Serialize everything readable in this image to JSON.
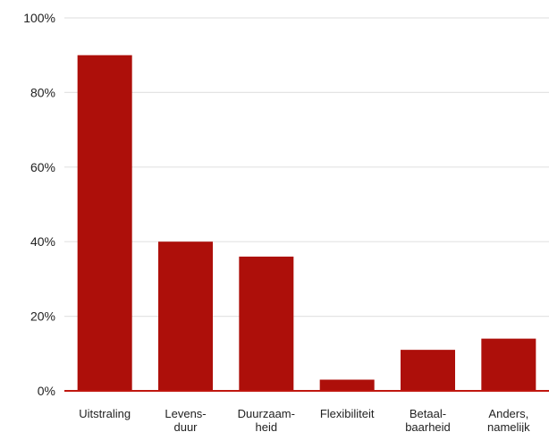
{
  "chart_data": {
    "type": "bar",
    "categories": [
      [
        "Uitstraling"
      ],
      [
        "Levens-",
        "duur"
      ],
      [
        "Duurzaam-",
        "heid"
      ],
      [
        "Flexibiliteit"
      ],
      [
        "Betaal-",
        "baarheid"
      ],
      [
        "Anders,",
        "namelijk"
      ]
    ],
    "values": [
      90,
      40,
      36,
      3,
      11,
      14
    ],
    "ylim": [
      0,
      100
    ],
    "yticks": [
      0,
      20,
      40,
      60,
      80,
      100
    ],
    "ytick_labels": [
      "0%",
      "20%",
      "40%",
      "60%",
      "80%",
      "100%"
    ],
    "grid": true,
    "colors": {
      "bar": "#ad0f0a",
      "grid": "#e4e4e4",
      "baseline": "#c0170f"
    }
  }
}
